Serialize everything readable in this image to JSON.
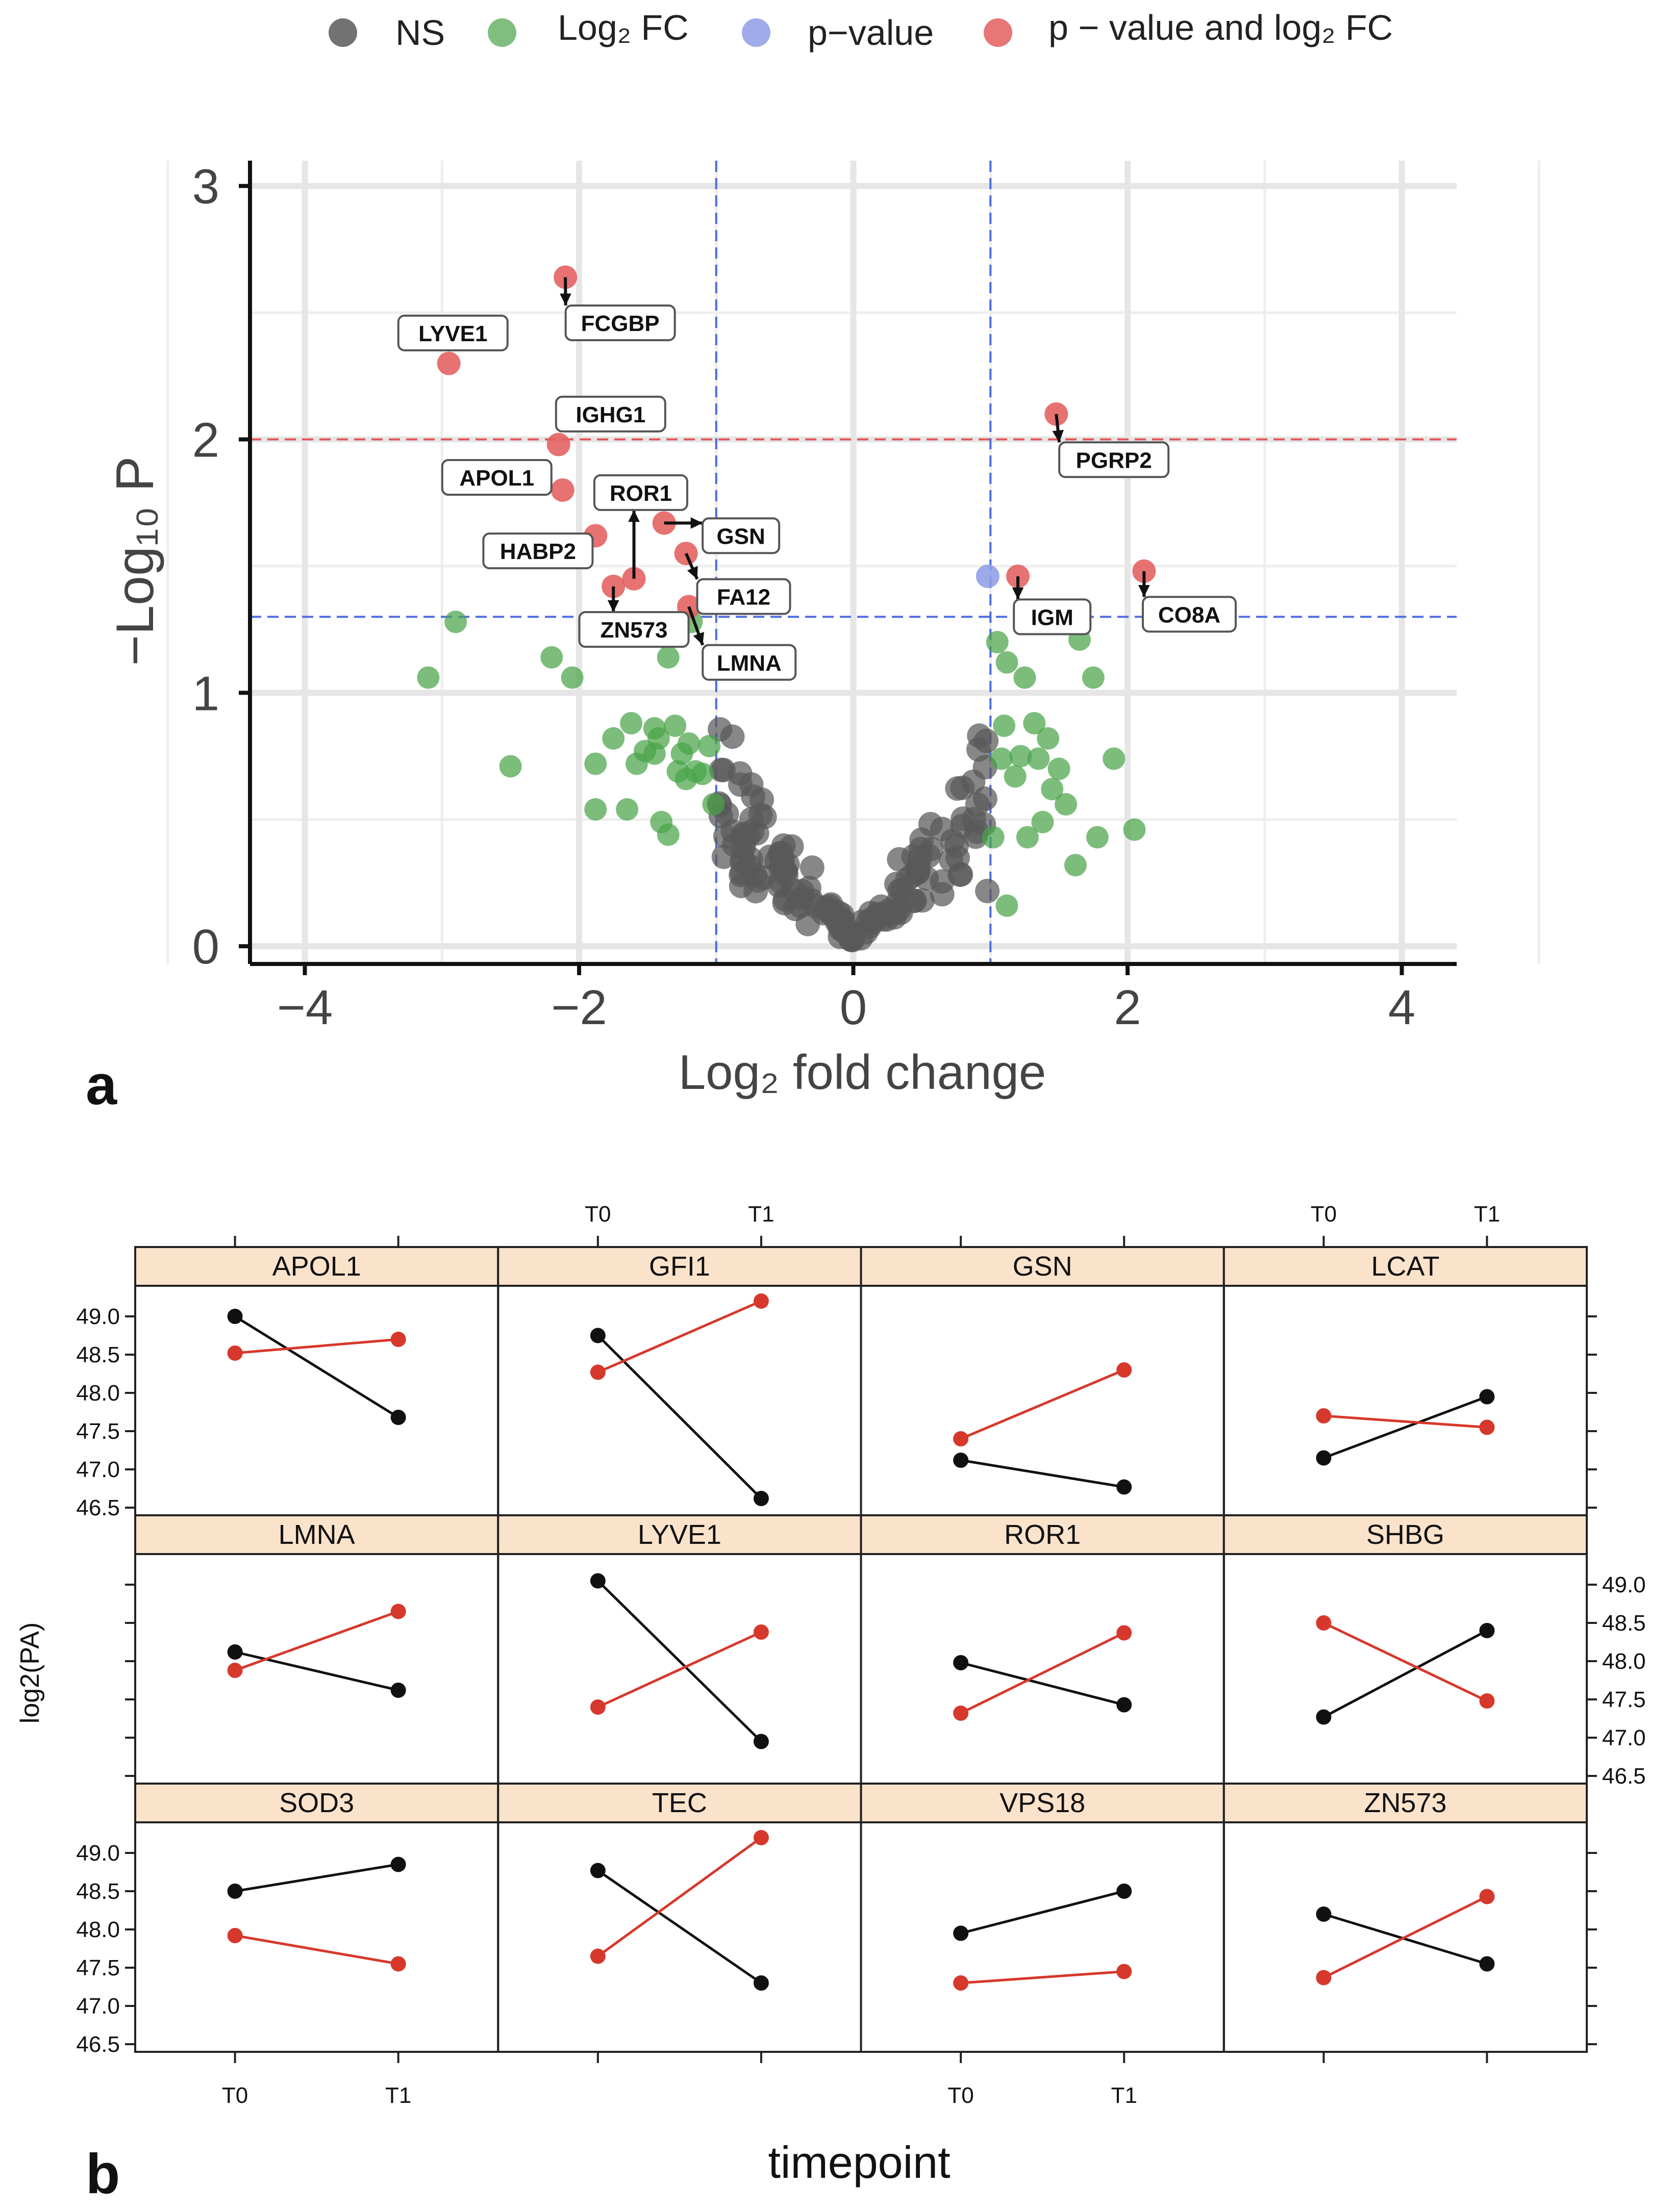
{
  "legend": {
    "items": [
      {
        "label": "NS",
        "color": "#595959"
      },
      {
        "label": "Log₂ FC",
        "color": "#4aa34a"
      },
      {
        "label": "p−value",
        "color": "#8f9ee6"
      },
      {
        "label": "p − value and log₂ FC",
        "color": "#e45e5e"
      }
    ]
  },
  "chart_data": [
    {
      "type": "scatter",
      "panel": "a",
      "xlabel": "Log₂ fold change",
      "ylabel": "−Log₁₀ P",
      "xlim": [
        -4.4,
        4.4
      ],
      "ylim": [
        -0.07,
        3.1
      ],
      "xticks": [
        -4,
        -2,
        0,
        2,
        4
      ],
      "xtick_labels": [
        "−4",
        "−2",
        "0",
        "2",
        "4"
      ],
      "yticks": [
        0,
        1,
        2,
        3
      ],
      "ytick_labels": [
        "0",
        "1",
        "2",
        "3"
      ],
      "thresholds": {
        "fc": [
          -1,
          1
        ],
        "p_blue": 1.3,
        "p_red": 2.0
      },
      "significant_points": [
        {
          "gene": "FCGBP",
          "x": -2.1,
          "y": 2.64,
          "group": "both",
          "label_pos": [
            -1.7,
            2.46
          ]
        },
        {
          "gene": "LYVE1",
          "x": -2.95,
          "y": 2.3,
          "group": "both",
          "label_pos": [
            -2.92,
            2.42
          ]
        },
        {
          "gene": "IGHG1",
          "x": -2.15,
          "y": 1.98,
          "group": "both",
          "label_pos": [
            -1.77,
            2.1
          ]
        },
        {
          "gene": "APOL1",
          "x": -2.12,
          "y": 1.8,
          "group": "both",
          "label_pos": [
            -2.6,
            1.85
          ]
        },
        {
          "gene": "ROR1",
          "x": -1.6,
          "y": 1.45,
          "group": "both",
          "label_pos": [
            -1.55,
            1.79
          ]
        },
        {
          "gene": "HABP2",
          "x": -1.88,
          "y": 1.62,
          "group": "both",
          "label_pos": [
            -2.3,
            1.56
          ]
        },
        {
          "gene": "GSN",
          "x": -1.38,
          "y": 1.67,
          "group": "both",
          "label_pos": [
            -0.82,
            1.62
          ]
        },
        {
          "gene": "FA12",
          "x": -1.22,
          "y": 1.55,
          "group": "both",
          "label_pos": [
            -0.8,
            1.38
          ]
        },
        {
          "gene": "ZN573",
          "x": -1.75,
          "y": 1.42,
          "group": "both",
          "label_pos": [
            -1.6,
            1.25
          ]
        },
        {
          "gene": "LMNA",
          "x": -1.2,
          "y": 1.34,
          "group": "both",
          "label_pos": [
            -0.76,
            1.12
          ]
        },
        {
          "gene": "PGRP2",
          "x": 1.48,
          "y": 2.1,
          "group": "both",
          "label_pos": [
            1.9,
            1.92
          ]
        },
        {
          "gene": "IGM",
          "x": 1.2,
          "y": 1.46,
          "group": "both",
          "label_pos": [
            1.45,
            1.3
          ]
        },
        {
          "gene": "CO8A",
          "x": 2.12,
          "y": 1.48,
          "group": "both",
          "label_pos": [
            2.45,
            1.31
          ]
        },
        {
          "gene": "",
          "x": 0.98,
          "y": 1.46,
          "group": "p",
          "label_pos": null
        }
      ],
      "groups": {
        "ns_count": 160,
        "fc_left": [
          [
            -3.1,
            1.06
          ],
          [
            -2.9,
            1.28
          ],
          [
            -2.5,
            0.71
          ],
          [
            -2.2,
            1.14
          ],
          [
            -2.05,
            1.06
          ],
          [
            -1.88,
            0.72
          ],
          [
            -1.88,
            0.54
          ],
          [
            -1.75,
            0.82
          ],
          [
            -1.65,
            0.54
          ],
          [
            -1.62,
            0.88
          ],
          [
            -1.58,
            0.72
          ],
          [
            -1.52,
            0.77
          ],
          [
            -1.45,
            0.86
          ],
          [
            -1.45,
            0.76
          ],
          [
            -1.42,
            0.82
          ],
          [
            -1.4,
            0.49
          ],
          [
            -1.38,
            1.22
          ],
          [
            -1.35,
            0.44
          ],
          [
            -1.35,
            1.14
          ],
          [
            -1.3,
            0.87
          ],
          [
            -1.28,
            0.69
          ],
          [
            -1.25,
            0.76
          ],
          [
            -1.22,
            0.66
          ],
          [
            -1.2,
            0.8
          ],
          [
            -1.18,
            1.28
          ],
          [
            -1.15,
            0.69
          ],
          [
            -1.1,
            0.68
          ],
          [
            -1.05,
            0.79
          ],
          [
            -1.02,
            0.56
          ]
        ],
        "fc_right": [
          [
            1.02,
            0.43
          ],
          [
            1.05,
            1.2
          ],
          [
            1.08,
            0.74
          ],
          [
            1.1,
            0.87
          ],
          [
            1.12,
            0.16
          ],
          [
            1.12,
            1.12
          ],
          [
            1.18,
            0.67
          ],
          [
            1.22,
            0.75
          ],
          [
            1.25,
            1.06
          ],
          [
            1.27,
            0.43
          ],
          [
            1.32,
            0.88
          ],
          [
            1.35,
            0.74
          ],
          [
            1.38,
            0.49
          ],
          [
            1.42,
            0.82
          ],
          [
            1.45,
            0.62
          ],
          [
            1.5,
            0.7
          ],
          [
            1.55,
            0.56
          ],
          [
            1.62,
            0.32
          ],
          [
            1.65,
            1.21
          ],
          [
            1.75,
            1.06
          ],
          [
            1.78,
            0.43
          ],
          [
            1.9,
            0.74
          ],
          [
            2.05,
            0.46
          ]
        ]
      }
    },
    {
      "type": "line",
      "panel": "b",
      "xlabel": "timepoint",
      "ylabel": "log2(PA)",
      "ylim": [
        46.4,
        49.4
      ],
      "yticks": [
        46.5,
        47.0,
        47.5,
        48.0,
        48.5,
        49.0
      ],
      "ytick_labels": [
        "46.5",
        "47.0",
        "47.5",
        "48.0",
        "48.5",
        "49.0"
      ],
      "x": [
        "T0",
        "T1"
      ],
      "series_colors": {
        "black": "#111111",
        "red": "#d6382c"
      },
      "facets": [
        {
          "name": "APOL1",
          "black": [
            49.0,
            47.68
          ],
          "red": [
            48.52,
            48.7
          ]
        },
        {
          "name": "GFI1",
          "black": [
            48.75,
            46.62
          ],
          "red": [
            48.27,
            49.2
          ]
        },
        {
          "name": "GSN",
          "black": [
            47.12,
            46.77
          ],
          "red": [
            47.4,
            48.3
          ]
        },
        {
          "name": "LCAT",
          "black": [
            47.15,
            47.95
          ],
          "red": [
            47.7,
            47.55
          ]
        },
        {
          "name": "LMNA",
          "black": [
            48.12,
            47.62
          ],
          "red": [
            47.88,
            48.65
          ]
        },
        {
          "name": "LYVE1",
          "black": [
            49.05,
            46.95
          ],
          "red": [
            47.4,
            48.38
          ]
        },
        {
          "name": "ROR1",
          "black": [
            47.98,
            47.43
          ],
          "red": [
            47.32,
            48.37
          ]
        },
        {
          "name": "SHBG",
          "black": [
            47.27,
            48.4
          ],
          "red": [
            48.5,
            47.48
          ]
        },
        {
          "name": "SOD3",
          "black": [
            48.5,
            48.85
          ],
          "red": [
            47.92,
            47.55
          ]
        },
        {
          "name": "TEC",
          "black": [
            48.77,
            47.3
          ],
          "red": [
            47.65,
            49.2
          ]
        },
        {
          "name": "VPS18",
          "black": [
            47.95,
            48.5
          ],
          "red": [
            47.3,
            47.45
          ]
        },
        {
          "name": "ZN573",
          "black": [
            48.2,
            47.55
          ],
          "red": [
            47.37,
            48.43
          ]
        }
      ],
      "tick_labels": {
        "t0": "T0",
        "t1": "T1"
      }
    }
  ],
  "panel_letters": {
    "a": "a",
    "b": "b"
  }
}
